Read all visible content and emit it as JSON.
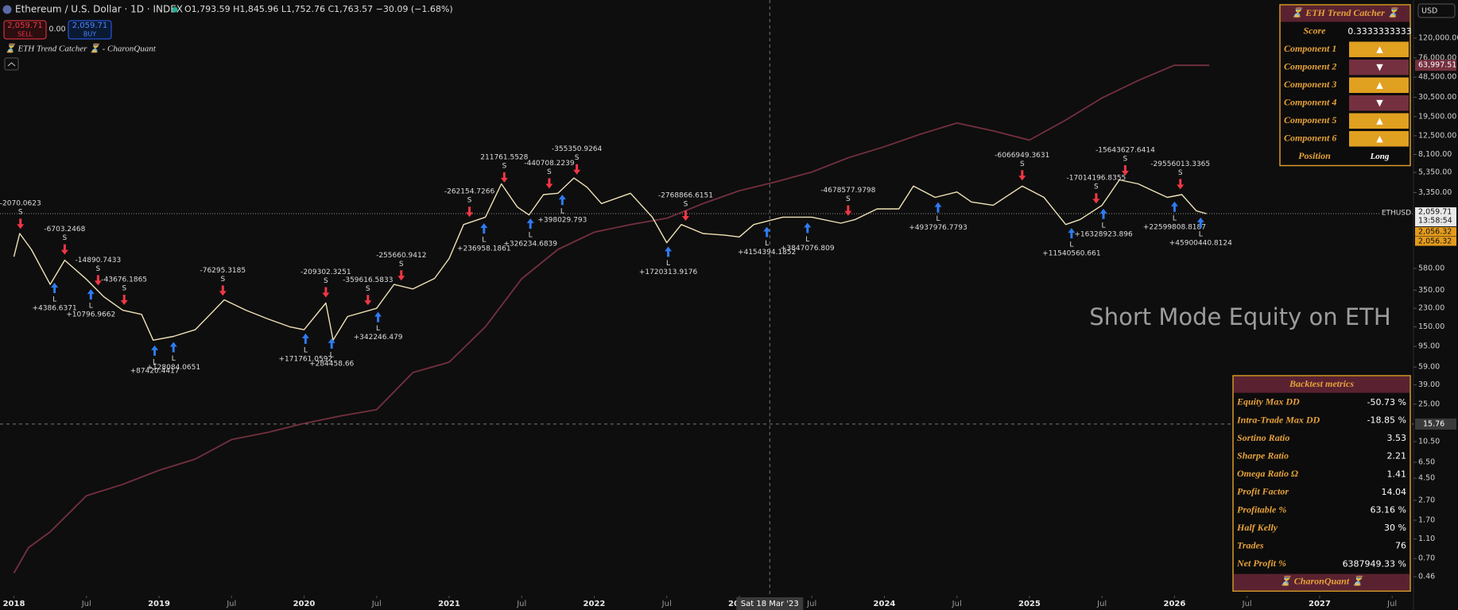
{
  "header": {
    "symbol": "Ethereum / U.S. Dollar · 1D · INDEX",
    "ohlc": "O1,793.59 H1,845.96 L1,752.76 C1,763.57 −30.09 (−1.68%)",
    "sell_price": "2,059.71",
    "sell": "SELL",
    "spread": "0.00",
    "buy_price": "2,059.71",
    "buy": "BUY",
    "indicator": "⏳ ETH Trend Catcher ⏳ - CharonQuant",
    "currency": "USD"
  },
  "chart_data": {
    "type": "line",
    "log_scale": true,
    "xlim": [
      2017.904,
      2027.647
    ],
    "ylim": [
      0.27,
      290000
    ],
    "xticks": [
      {
        "value": 2018,
        "label": "2018"
      },
      {
        "value": 2018.5,
        "label": "Jul"
      },
      {
        "value": 2019,
        "label": "2019"
      },
      {
        "value": 2019.5,
        "label": "Jul"
      },
      {
        "value": 2020,
        "label": "2020"
      },
      {
        "value": 2020.5,
        "label": "Jul"
      },
      {
        "value": 2021,
        "label": "2021"
      },
      {
        "value": 2021.5,
        "label": "Jul"
      },
      {
        "value": 2022,
        "label": "2022"
      },
      {
        "value": 2022.5,
        "label": "Jul"
      },
      {
        "value": 2023,
        "label": "2023"
      },
      {
        "value": 2023.5,
        "label": "Jul"
      },
      {
        "value": 2024,
        "label": "2024"
      },
      {
        "value": 2024.5,
        "label": "Jul"
      },
      {
        "value": 2025,
        "label": "2025"
      },
      {
        "value": 2025.5,
        "label": "Jul"
      },
      {
        "value": 2026,
        "label": "2026"
      },
      {
        "value": 2026.5,
        "label": "Jul"
      },
      {
        "value": 2027,
        "label": "2027"
      },
      {
        "value": 2027.5,
        "label": "Jul"
      }
    ],
    "yticks": [
      {
        "value": 120000,
        "label": "120,000.00"
      },
      {
        "value": 76000,
        "label": "76,000.00"
      },
      {
        "value": 48500,
        "label": "48,500.00"
      },
      {
        "value": 30500,
        "label": "30,500.00"
      },
      {
        "value": 19500,
        "label": "19,500.00"
      },
      {
        "value": 12500,
        "label": "12,500.00"
      },
      {
        "value": 8100,
        "label": "8,100.00"
      },
      {
        "value": 5350,
        "label": "5,350.00"
      },
      {
        "value": 3350,
        "label": "3,350.00"
      },
      {
        "value": 580,
        "label": "580.00"
      },
      {
        "value": 350,
        "label": "350.00"
      },
      {
        "value": 230,
        "label": "230.00"
      },
      {
        "value": 150,
        "label": "150.00"
      },
      {
        "value": 95,
        "label": "95.00"
      },
      {
        "value": 59,
        "label": "59.00"
      },
      {
        "value": 39,
        "label": "39.00"
      },
      {
        "value": 25,
        "label": "25.00"
      },
      {
        "value": 10.5,
        "label": "10.50"
      },
      {
        "value": 6.5,
        "label": "6.50"
      },
      {
        "value": 4.5,
        "label": "4.50"
      },
      {
        "value": 2.7,
        "label": "2.70"
      },
      {
        "value": 1.7,
        "label": "1.70"
      },
      {
        "value": 1.1,
        "label": "1.10"
      },
      {
        "value": 0.7,
        "label": "0.70"
      },
      {
        "value": 0.46,
        "label": "0.46"
      }
    ],
    "series": [
      {
        "name": "ETHUSD",
        "color": "#f0e2b6",
        "x": [
          2018.0,
          2018.04,
          2018.12,
          2018.25,
          2018.35,
          2018.5,
          2018.62,
          2018.75,
          2018.88,
          2018.96,
          2019.1,
          2019.25,
          2019.45,
          2019.6,
          2019.75,
          2019.9,
          2020.0,
          2020.15,
          2020.2,
          2020.3,
          2020.5,
          2020.62,
          2020.75,
          2020.9,
          2021.0,
          2021.1,
          2021.25,
          2021.36,
          2021.47,
          2021.55,
          2021.65,
          2021.75,
          2021.86,
          2021.95,
          2022.05,
          2022.25,
          2022.4,
          2022.5,
          2022.6,
          2022.75,
          2022.9,
          2023.0,
          2023.1,
          2023.3,
          2023.5,
          2023.7,
          2023.8,
          2023.95,
          2024.1,
          2024.2,
          2024.35,
          2024.5,
          2024.6,
          2024.75,
          2024.95,
          2025.1,
          2025.25,
          2025.35,
          2025.5,
          2025.62,
          2025.75,
          2025.85,
          2025.95,
          2026.05,
          2026.15,
          2026.22
        ],
        "values": [
          760,
          1300,
          900,
          400,
          700,
          450,
          300,
          220,
          200,
          110,
          120,
          140,
          280,
          220,
          180,
          150,
          140,
          260,
          110,
          190,
          230,
          400,
          360,
          460,
          730,
          1600,
          1900,
          4100,
          2400,
          2000,
          3200,
          3300,
          4700,
          3800,
          2600,
          3300,
          1900,
          1050,
          1600,
          1300,
          1250,
          1200,
          1600,
          1900,
          1900,
          1650,
          1800,
          2300,
          2300,
          3900,
          3000,
          3400,
          2700,
          2500,
          3900,
          3000,
          1600,
          1800,
          2500,
          4500,
          4100,
          3500,
          3000,
          3200,
          2200,
          2059.71
        ]
      },
      {
        "name": "Short Mode Equity on ETH",
        "color": "#74303f",
        "x": [
          2018.0,
          2018.1,
          2018.25,
          2018.5,
          2018.75,
          2019.0,
          2019.25,
          2019.5,
          2019.75,
          2020.0,
          2020.25,
          2020.5,
          2020.75,
          2021.0,
          2021.25,
          2021.5,
          2021.75,
          2022.0,
          2022.25,
          2022.5,
          2022.75,
          2023.0,
          2023.25,
          2023.5,
          2023.75,
          2024.0,
          2024.25,
          2024.5,
          2024.75,
          2025.0,
          2025.25,
          2025.5,
          2025.75,
          2026.0,
          2026.24
        ],
        "values": [
          0.5,
          0.9,
          1.3,
          3,
          3.9,
          5.4,
          7,
          11,
          13,
          16,
          19,
          22,
          52,
          66,
          150,
          456,
          900,
          1340,
          1600,
          1850,
          2600,
          3500,
          4300,
          5400,
          7500,
          9700,
          13000,
          16800,
          14000,
          11300,
          18000,
          30000,
          45000,
          64000,
          63997.51
        ]
      }
    ],
    "axis_tags": {
      "price": {
        "value": 2059.71,
        "label": "2,059.71"
      },
      "countdown": "13:58:54",
      "price_b": {
        "value": 2056.32,
        "label": "2,056.32"
      },
      "price_c": {
        "value": 2056.32,
        "label": "2,056.32"
      },
      "equity": {
        "value": 63997.51,
        "label": "63,997.51"
      }
    },
    "crosshair": {
      "x": {
        "value": 2023.21,
        "label": "Sat 18 Mar '23"
      },
      "y": {
        "value": 15.76,
        "label": "15.76"
      }
    },
    "annotations": [
      {
        "side": "S",
        "x": 2018.045,
        "label": "-2070.0623"
      },
      {
        "side": "S",
        "x": 2018.35,
        "label": "-6703.2468"
      },
      {
        "side": "S",
        "x": 2018.58,
        "label": "-14890.7433"
      },
      {
        "side": "S",
        "x": 2018.76,
        "label": "-43676.1865"
      },
      {
        "side": "S",
        "x": 2019.44,
        "label": "-76295.3185"
      },
      {
        "side": "S",
        "x": 2020.15,
        "label": "-209302.3251"
      },
      {
        "side": "S",
        "x": 2020.44,
        "label": "-359616.5833"
      },
      {
        "side": "S",
        "x": 2020.67,
        "label": "-255660.9412"
      },
      {
        "side": "S",
        "x": 2021.14,
        "label": "-262154.7266"
      },
      {
        "side": "S",
        "x": 2021.38,
        "label": "211761.5528"
      },
      {
        "side": "S",
        "x": 2021.69,
        "label": "-440708.2239"
      },
      {
        "side": "S",
        "x": 2021.88,
        "label": "-355350.9264"
      },
      {
        "side": "S",
        "x": 2022.63,
        "label": "-2768866.6151"
      },
      {
        "side": "S",
        "x": 2023.75,
        "label": "-4678577.9798"
      },
      {
        "side": "S",
        "x": 2024.95,
        "label": "-6066949.3631"
      },
      {
        "side": "S",
        "x": 2025.46,
        "label": "-17014196.8355"
      },
      {
        "side": "S",
        "x": 2025.66,
        "label": "-15643627.6414"
      },
      {
        "side": "S",
        "x": 2026.04,
        "label": "-29556013.3365"
      },
      {
        "side": "L",
        "x": 2018.28,
        "label": "+4386.6371"
      },
      {
        "side": "L",
        "x": 2018.53,
        "label": "+10796.9662"
      },
      {
        "side": "L",
        "x": 2018.97,
        "label": "+87420.4417"
      },
      {
        "side": "L",
        "x": 2019.1,
        "label": "+128084.0651"
      },
      {
        "side": "L",
        "x": 2020.01,
        "label": "+171761.0592"
      },
      {
        "side": "L",
        "x": 2020.19,
        "label": "+284458.66"
      },
      {
        "side": "L",
        "x": 2020.51,
        "label": "+342246.479"
      },
      {
        "side": "L",
        "x": 2021.24,
        "label": "+236958.1861"
      },
      {
        "side": "L",
        "x": 2021.56,
        "label": "+326234.6839"
      },
      {
        "side": "L",
        "x": 2021.78,
        "label": "+398029.793"
      },
      {
        "side": "L",
        "x": 2022.51,
        "label": "+1720313.9176"
      },
      {
        "side": "L",
        "x": 2023.19,
        "label": "+4154394.1852"
      },
      {
        "side": "L",
        "x": 2023.47,
        "label": "+3847076.809"
      },
      {
        "side": "L",
        "x": 2024.37,
        "label": "+4937976.7793"
      },
      {
        "side": "L",
        "x": 2025.29,
        "label": "+11540560.661"
      },
      {
        "side": "L",
        "x": 2025.51,
        "label": "+16328923.896"
      },
      {
        "side": "L",
        "x": 2026.0,
        "label": "+22599808.8187"
      },
      {
        "side": "L",
        "x": 2026.18,
        "label": "+45900440.8124"
      }
    ]
  },
  "trend_table": {
    "title": "⏳ ETH Trend Catcher ⏳",
    "rows": [
      [
        "Score",
        "0.3333333333"
      ],
      [
        "Component 1",
        "▲"
      ],
      [
        "Component 2",
        "▼"
      ],
      [
        "Component 3",
        "▲"
      ],
      [
        "Component 4",
        "▼"
      ],
      [
        "Component 5",
        "▲"
      ],
      [
        "Component 6",
        "▲"
      ],
      [
        "Position",
        "Long"
      ]
    ]
  },
  "metrics": {
    "title": "Backtest metrics",
    "rows": [
      [
        "Equity Max DD",
        "-50.73 %"
      ],
      [
        "Intra-Trade Max DD",
        "-18.85 %"
      ],
      [
        "Sortino Ratio",
        "3.53"
      ],
      [
        "Sharpe Ratio",
        "2.21"
      ],
      [
        "Omega Ratio Ω",
        "1.41"
      ],
      [
        "Profit Factor",
        "14.04"
      ],
      [
        "Profitable %",
        "63.16 %"
      ],
      [
        "Half Kelly",
        "30 %"
      ],
      [
        "Trades",
        "76"
      ],
      [
        "Net Profit %",
        "6387949.33 %"
      ]
    ],
    "footer": "⏳ CharonQuant ⏳"
  }
}
